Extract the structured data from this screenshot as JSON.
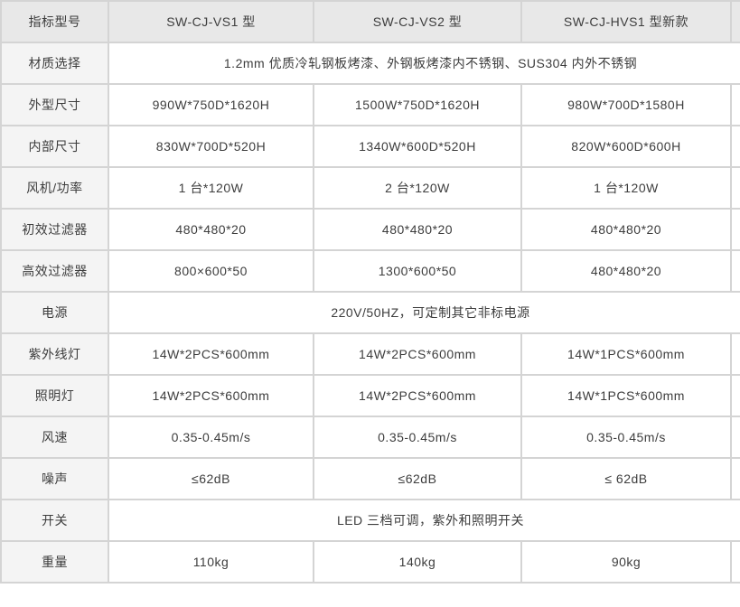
{
  "table": {
    "header": {
      "label_column_title": "指标型号",
      "models": [
        "SW-CJ-VS1 型",
        "SW-CJ-VS2 型",
        "SW-CJ-HVS1 型新款"
      ]
    },
    "rows": [
      {
        "label": "材质选择",
        "merged": "1.2mm 优质冷轧钢板烤漆、外钢板烤漆内不锈钢、SUS304 内外不锈钢"
      },
      {
        "label": "外型尺寸",
        "values": [
          "990W*750D*1620H",
          "1500W*750D*1620H",
          "980W*700D*1580H"
        ]
      },
      {
        "label": "内部尺寸",
        "values": [
          "830W*700D*520H",
          "1340W*600D*520H",
          "820W*600D*600H"
        ]
      },
      {
        "label": "风机/功率",
        "values": [
          "1 台*120W",
          "2 台*120W",
          "1 台*120W"
        ]
      },
      {
        "label": "初效过滤器",
        "values": [
          "480*480*20",
          "480*480*20",
          "480*480*20"
        ]
      },
      {
        "label": "高效过滤器",
        "values": [
          "800×600*50",
          "1300*600*50",
          "480*480*20"
        ]
      },
      {
        "label": "电源",
        "merged": "220V/50HZ，可定制其它非标电源"
      },
      {
        "label": "紫外线灯",
        "values": [
          "14W*2PCS*600mm",
          "14W*2PCS*600mm",
          "14W*1PCS*600mm"
        ]
      },
      {
        "label": "照明灯",
        "values": [
          "14W*2PCS*600mm",
          "14W*2PCS*600mm",
          "14W*1PCS*600mm"
        ]
      },
      {
        "label": "风速",
        "values": [
          "0.35-0.45m/s",
          "0.35-0.45m/s",
          "0.35-0.45m/s"
        ]
      },
      {
        "label": "噪声",
        "values": [
          "≤62dB",
          "≤62dB",
          "≤ 62dB"
        ]
      },
      {
        "label": "开关",
        "merged": "LED 三档可调，紫外和照明开关"
      },
      {
        "label": "重量",
        "values": [
          "110kg",
          "140kg",
          "90kg"
        ]
      }
    ],
    "colors": {
      "header_bg": "#e8e8e8",
      "label_column_bg": "#f4f4f4",
      "cell_bg": "#ffffff",
      "border": "#d4d4d4",
      "text": "#3d3d3d"
    }
  }
}
